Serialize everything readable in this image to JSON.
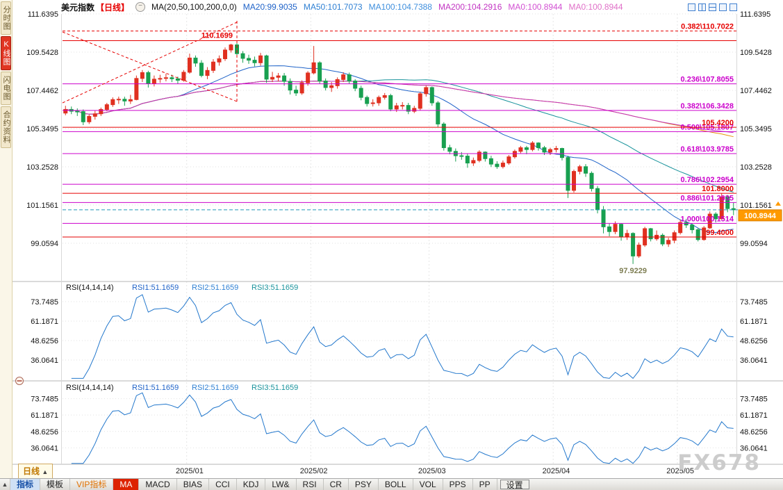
{
  "watermark": "FX678",
  "sidebar": {
    "tabs": [
      {
        "label": "分时图",
        "active": false
      },
      {
        "label": "K线图",
        "active": true
      },
      {
        "label": "闪电图",
        "active": false
      },
      {
        "label": "合约资料",
        "active": false
      }
    ]
  },
  "header": {
    "symbol": "美元指数",
    "period": "【日线】",
    "collapse_icon": "−",
    "ma_title": "MA(20,50,100,200,0,0)",
    "ma_values": [
      {
        "text": "MA20:99.9035",
        "color": "#1e62c8"
      },
      {
        "text": "MA50:101.7073",
        "color": "#2d7fd3"
      },
      {
        "text": "MA100:104.7388",
        "color": "#3f8fdd"
      },
      {
        "text": "MA200:104.2916",
        "color": "#c233c2"
      },
      {
        "text": "MA0:100.8944",
        "color": "#d24fd2"
      },
      {
        "text": "MA0:100.8944",
        "color": "#e070c8"
      }
    ],
    "layout_icons": [
      "layout-single-icon",
      "layout-split-vertical-icon",
      "layout-split-horizontal-icon",
      "layout-grid-3-icon",
      "layout-grid-4-icon"
    ]
  },
  "period_box": {
    "label": "日线",
    "arrow": "▲"
  },
  "toolbar": {
    "arrow": "▲",
    "items": [
      {
        "label": "指标",
        "style": "first"
      },
      {
        "label": "模板",
        "style": ""
      },
      {
        "label": "VIP指标",
        "style": "vip"
      },
      {
        "label": "MA",
        "style": "active"
      },
      {
        "label": "MACD",
        "style": ""
      },
      {
        "label": "BIAS",
        "style": ""
      },
      {
        "label": "CCI",
        "style": ""
      },
      {
        "label": "KDJ",
        "style": ""
      },
      {
        "label": "LW&",
        "style": ""
      },
      {
        "label": "RSI",
        "style": ""
      },
      {
        "label": "CR",
        "style": ""
      },
      {
        "label": "PSY",
        "style": ""
      },
      {
        "label": "BOLL",
        "style": ""
      },
      {
        "label": "VOL",
        "style": ""
      },
      {
        "label": "PPS",
        "style": ""
      },
      {
        "label": "PP",
        "style": ""
      },
      {
        "label": "设置",
        "style": "boxed"
      }
    ]
  },
  "chart_data": {
    "type": "candlestick",
    "symbol": "美元指数",
    "period": "日线",
    "up_color": "#e03020",
    "down_color": "#18a050",
    "price_top": 111.6395,
    "price_bottom": 97.0,
    "y_ticks": [
      {
        "label": "111.6395",
        "value": 111.6395
      },
      {
        "label": "109.5428",
        "value": 109.5428
      },
      {
        "label": "107.4462",
        "value": 107.4462
      },
      {
        "label": "105.3495",
        "value": 105.3495
      },
      {
        "label": "103.2528",
        "value": 103.2528
      },
      {
        "label": "101.1561",
        "value": 101.1561
      },
      {
        "label": "99.0594",
        "value": 99.0594
      }
    ],
    "months": [
      {
        "label": "2025/01",
        "index": 21
      },
      {
        "label": "2025/02",
        "index": 42
      },
      {
        "label": "2025/03",
        "index": 62
      },
      {
        "label": "2025/04",
        "index": 83
      },
      {
        "label": "2025/05",
        "index": 104
      }
    ],
    "candles": [
      [
        106.2,
        106.6,
        106.08,
        106.4
      ],
      [
        106.4,
        106.56,
        106.14,
        106.3
      ],
      [
        106.3,
        106.46,
        106.04,
        106.28
      ],
      [
        106.28,
        106.4,
        105.54,
        105.72
      ],
      [
        105.72,
        106.12,
        105.6,
        106.02
      ],
      [
        106.02,
        106.32,
        105.84,
        106.16
      ],
      [
        106.16,
        106.5,
        106.04,
        106.4
      ],
      [
        106.4,
        106.76,
        106.3,
        106.66
      ],
      [
        106.66,
        107.06,
        106.54,
        106.94
      ],
      [
        106.94,
        107.1,
        106.7,
        106.96
      ],
      [
        106.96,
        107.1,
        106.6,
        106.86
      ],
      [
        106.86,
        107.2,
        106.7,
        106.94
      ],
      [
        106.94,
        108.26,
        106.9,
        108.1
      ],
      [
        108.1,
        108.56,
        107.9,
        108.42
      ],
      [
        108.42,
        108.52,
        107.6,
        107.82
      ],
      [
        107.82,
        108.26,
        107.66,
        108.06
      ],
      [
        108.06,
        108.3,
        107.86,
        108.1
      ],
      [
        108.1,
        108.36,
        107.94,
        108.14
      ],
      [
        108.14,
        108.3,
        107.9,
        108.08
      ],
      [
        108.08,
        108.2,
        107.8,
        108.0
      ],
      [
        108.0,
        108.56,
        107.92,
        108.44
      ],
      [
        108.44,
        109.46,
        108.36,
        109.22
      ],
      [
        109.22,
        109.36,
        108.74,
        108.94
      ],
      [
        108.94,
        109.1,
        108.16,
        108.26
      ],
      [
        108.26,
        108.72,
        108.06,
        108.54
      ],
      [
        108.54,
        109.16,
        108.4,
        109.0
      ],
      [
        109.0,
        109.36,
        108.8,
        109.18
      ],
      [
        109.18,
        109.8,
        109.06,
        109.66
      ],
      [
        109.66,
        110.0,
        109.52,
        109.94
      ],
      [
        109.94,
        110.1699,
        109.26,
        109.46
      ],
      [
        109.46,
        109.6,
        108.96,
        109.2
      ],
      [
        109.2,
        109.4,
        108.9,
        109.1
      ],
      [
        109.1,
        109.3,
        108.76,
        108.96
      ],
      [
        108.96,
        109.5,
        108.8,
        109.34
      ],
      [
        109.34,
        109.4,
        107.86,
        108.06
      ],
      [
        108.06,
        108.46,
        107.9,
        108.16
      ],
      [
        108.16,
        108.4,
        107.94,
        108.24
      ],
      [
        108.24,
        108.4,
        107.7,
        107.94
      ],
      [
        107.94,
        108.1,
        107.22,
        107.46
      ],
      [
        107.46,
        107.7,
        107.14,
        107.3
      ],
      [
        107.3,
        108.0,
        107.2,
        107.86
      ],
      [
        107.86,
        108.5,
        107.7,
        108.4
      ],
      [
        108.4,
        109.88,
        108.32,
        108.96
      ],
      [
        108.96,
        109.04,
        107.82,
        107.96
      ],
      [
        107.96,
        108.1,
        107.44,
        107.6
      ],
      [
        107.6,
        107.9,
        107.36,
        107.7
      ],
      [
        107.7,
        108.16,
        107.54,
        108.04
      ],
      [
        108.04,
        108.44,
        107.9,
        108.3
      ],
      [
        108.3,
        108.42,
        107.82,
        107.96
      ],
      [
        107.96,
        108.06,
        107.4,
        107.56
      ],
      [
        107.56,
        107.7,
        106.9,
        107.06
      ],
      [
        107.06,
        107.16,
        106.56,
        106.72
      ],
      [
        106.72,
        106.96,
        106.56,
        106.76
      ],
      [
        106.76,
        107.16,
        106.6,
        107.06
      ],
      [
        107.06,
        107.3,
        106.94,
        107.16
      ],
      [
        107.16,
        107.26,
        106.3,
        106.42
      ],
      [
        106.42,
        106.76,
        106.26,
        106.6
      ],
      [
        106.6,
        106.8,
        106.4,
        106.62
      ],
      [
        106.62,
        106.76,
        106.14,
        106.3
      ],
      [
        106.3,
        106.6,
        106.2,
        106.46
      ],
      [
        106.46,
        107.36,
        106.36,
        107.26
      ],
      [
        107.26,
        107.7,
        107.1,
        107.6
      ],
      [
        107.6,
        107.66,
        106.6,
        106.76
      ],
      [
        106.76,
        106.86,
        105.44,
        105.6
      ],
      [
        105.6,
        105.7,
        104.14,
        104.3
      ],
      [
        104.3,
        104.46,
        103.94,
        104.1
      ],
      [
        104.1,
        104.26,
        103.54,
        103.86
      ],
      [
        103.86,
        104.06,
        103.64,
        103.84
      ],
      [
        103.84,
        103.96,
        103.2,
        103.46
      ],
      [
        103.46,
        103.76,
        103.3,
        103.6
      ],
      [
        103.6,
        104.16,
        103.5,
        104.06
      ],
      [
        104.06,
        104.1,
        103.54,
        103.7
      ],
      [
        103.7,
        103.86,
        103.24,
        103.4
      ],
      [
        103.4,
        103.56,
        103.14,
        103.26
      ],
      [
        103.26,
        103.6,
        103.16,
        103.46
      ],
      [
        103.46,
        103.9,
        103.36,
        103.8
      ],
      [
        103.8,
        104.2,
        103.7,
        104.1
      ],
      [
        104.1,
        104.4,
        104.0,
        104.3
      ],
      [
        104.3,
        104.4,
        103.94,
        104.2
      ],
      [
        104.2,
        104.66,
        104.1,
        104.56
      ],
      [
        104.56,
        104.6,
        104.14,
        104.3
      ],
      [
        104.3,
        104.4,
        103.9,
        104.06
      ],
      [
        104.06,
        104.3,
        103.9,
        104.2
      ],
      [
        104.2,
        104.4,
        104.04,
        104.26
      ],
      [
        104.26,
        104.3,
        103.6,
        103.76
      ],
      [
        103.76,
        103.86,
        101.54,
        101.96
      ],
      [
        101.96,
        103.1,
        101.84,
        103.0
      ],
      [
        103.0,
        103.36,
        102.84,
        103.26
      ],
      [
        103.26,
        103.4,
        102.7,
        102.9
      ],
      [
        102.9,
        103.0,
        101.9,
        102.06
      ],
      [
        102.06,
        102.2,
        100.7,
        100.9
      ],
      [
        100.9,
        101.1,
        99.6,
        99.96
      ],
      [
        99.96,
        100.16,
        99.44,
        99.7
      ],
      [
        99.7,
        100.26,
        99.56,
        100.1
      ],
      [
        100.1,
        100.16,
        99.2,
        99.4
      ],
      [
        99.4,
        99.8,
        99.24,
        99.6
      ],
      [
        99.6,
        99.66,
        97.9229,
        98.36
      ],
      [
        98.36,
        99.1,
        98.26,
        98.96
      ],
      [
        98.96,
        99.96,
        98.86,
        99.86
      ],
      [
        99.86,
        99.9,
        99.16,
        99.3
      ],
      [
        99.3,
        99.76,
        99.2,
        99.5
      ],
      [
        99.5,
        99.6,
        98.9,
        99.02
      ],
      [
        99.02,
        99.36,
        98.86,
        99.22
      ],
      [
        99.22,
        99.76,
        99.06,
        99.64
      ],
      [
        99.64,
        100.36,
        99.54,
        100.2
      ],
      [
        100.2,
        100.4,
        99.9,
        100.06
      ],
      [
        100.06,
        100.16,
        99.6,
        99.8
      ],
      [
        99.8,
        99.9,
        99.16,
        99.26
      ],
      [
        99.26,
        100.0,
        99.2,
        99.9
      ],
      [
        99.9,
        100.8,
        99.84,
        100.66
      ],
      [
        100.66,
        100.76,
        100.2,
        100.4
      ],
      [
        100.4,
        101.8,
        100.36,
        101.6
      ],
      [
        101.6,
        101.7,
        100.76,
        100.96
      ],
      [
        100.96,
        101.3,
        100.6,
        100.8944
      ]
    ],
    "ma_lines": [
      {
        "period": 20,
        "color": "#1e62c8"
      },
      {
        "period": 50,
        "color": "#17929b"
      },
      {
        "period": 100,
        "color": "#e8950a"
      },
      {
        "period": 200,
        "color": "#c233c2"
      }
    ],
    "fib_color": "#cc00cc",
    "fib_levels": [
      {
        "label": "0.236\\107.8055",
        "value": 107.8055
      },
      {
        "label": "0.382\\106.3428",
        "value": 106.3428
      },
      {
        "label": "0.500\\105.1807",
        "value": 105.1807
      },
      {
        "label": "0.618\\103.9785",
        "value": 103.9785
      },
      {
        "label": "0.786\\102.2954",
        "value": 102.2954
      },
      {
        "label": "0.886\\101.2935",
        "value": 101.2935
      },
      {
        "label": "1.000\\100.1514",
        "value": 100.1514
      }
    ],
    "red_dashed_level": {
      "label": "0.382\\110.7022",
      "value": 110.7022,
      "color": "#e60000"
    },
    "alert_lines": [
      {
        "label": "110.1699",
        "value": 110.1699,
        "label_pos": "peak"
      },
      {
        "label": "105.4200",
        "value": 105.42
      },
      {
        "label": "101.8000",
        "value": 101.8
      },
      {
        "label": "99.4000",
        "value": 99.4
      }
    ],
    "alert_color": "#e60000",
    "current_price": {
      "label": "100.8944",
      "value": 100.8944,
      "badge_color": "#ff9a00",
      "line_color": "#2299bb"
    },
    "low_annotation": {
      "label": "97.9229",
      "color": "#7d7d52"
    },
    "drawings": {
      "color": "#e60000",
      "lines": [
        {
          "x1": 72,
          "y1": 148,
          "x2": 323,
          "y2": 32
        },
        {
          "x1": 72,
          "y1": 46,
          "x2": 323,
          "y2": 146
        },
        {
          "x1": 323,
          "y1": 30,
          "x2": 323,
          "y2": 146
        }
      ]
    },
    "rsi_panels": [
      {
        "title": "RSI(14,14,14)",
        "readouts": [
          {
            "text": "RSI1:51.1659",
            "color": "#1e62c8"
          },
          {
            "text": "RSI2:51.1659",
            "color": "#2d7fd3"
          },
          {
            "text": "RSI3:51.1659",
            "color": "#17929b"
          }
        ],
        "y_ticks": [
          {
            "label": "73.7485",
            "value": 73.7485
          },
          {
            "label": "61.1871",
            "value": 61.1871
          },
          {
            "label": "48.6256",
            "value": 48.6256
          },
          {
            "label": "36.0641",
            "value": 36.0641
          }
        ],
        "range": [
          23.5,
          86.3
        ],
        "line_color": "#2277cc"
      },
      {
        "title": "RSI(14,14,14)",
        "readouts": [
          {
            "text": "RSI1:51.1659",
            "color": "#1e62c8"
          },
          {
            "text": "RSI2:51.1659",
            "color": "#2d7fd3"
          },
          {
            "text": "RSI3:51.1659",
            "color": "#17929b"
          }
        ],
        "y_ticks": [
          {
            "label": "73.7485",
            "value": 73.7485
          },
          {
            "label": "61.1871",
            "value": 61.1871
          },
          {
            "label": "48.6256",
            "value": 48.6256
          },
          {
            "label": "36.0641",
            "value": 36.0641
          }
        ],
        "range": [
          23.5,
          86.3
        ],
        "line_color": "#2277cc"
      }
    ]
  }
}
